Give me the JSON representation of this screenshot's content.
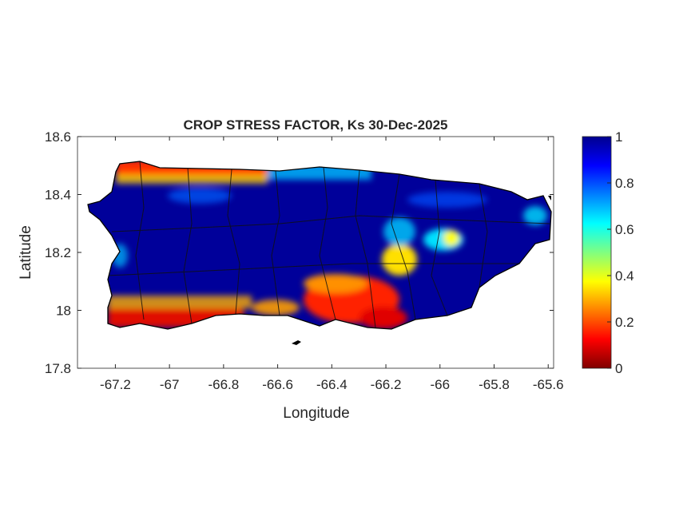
{
  "title": "CROP STRESS FACTOR, Ks  30-Dec-2025",
  "xlabel": "Longitude",
  "ylabel": "Latitude",
  "axes": {
    "xlim": [
      -67.34,
      -65.58
    ],
    "ylim": [
      17.8,
      18.6
    ],
    "xticks": [
      "-67.2",
      "-67",
      "-66.8",
      "-66.6",
      "-66.4",
      "-66.2",
      "-66",
      "-65.8",
      "-65.6"
    ],
    "xtick_values": [
      -67.2,
      -67,
      -66.8,
      -66.6,
      -66.4,
      -66.2,
      -66,
      -65.8,
      -65.6
    ],
    "yticks": [
      "17.8",
      "18",
      "18.2",
      "18.4",
      "18.6"
    ],
    "ytick_values": [
      17.8,
      18.0,
      18.2,
      18.4,
      18.6
    ]
  },
  "colorbar": {
    "colormap": "jet",
    "range": [
      0,
      1
    ],
    "ticks": [
      "0",
      "0.2",
      "0.4",
      "0.6",
      "0.8",
      "1"
    ],
    "tick_values": [
      0,
      0.2,
      0.4,
      0.6,
      0.8,
      1
    ]
  },
  "colors": {
    "high": "#00008f",
    "low": "#800000",
    "outline": "#000000"
  }
}
